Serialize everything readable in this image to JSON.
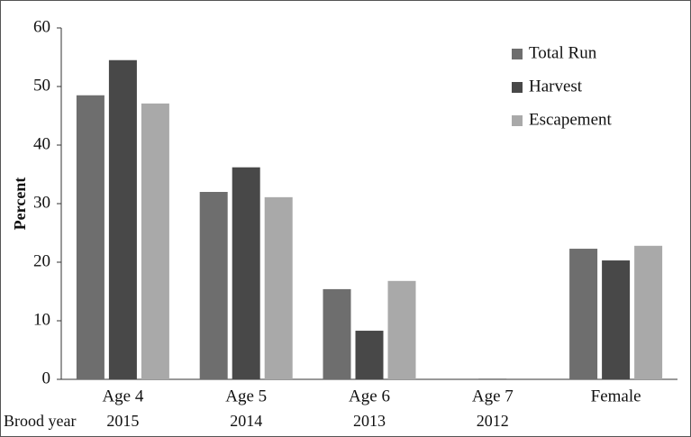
{
  "chart_data": {
    "type": "bar",
    "y_label": "Percent",
    "categories": [
      "Age 4",
      "Age 5",
      "Age 6",
      "Age 7",
      "Female"
    ],
    "second_row_label": "Brood year",
    "second_row": [
      "2015",
      "2014",
      "2013",
      "2012",
      null
    ],
    "series": [
      {
        "name": "Total Run",
        "color": "#6e6e6e",
        "values": [
          48.5,
          32.0,
          15.4,
          0,
          22.3
        ]
      },
      {
        "name": "Harvest",
        "color": "#484848",
        "values": [
          54.5,
          36.2,
          8.3,
          0.1,
          20.3
        ]
      },
      {
        "name": "Escapement",
        "color": "#a9a9a9",
        "values": [
          47.1,
          31.1,
          16.8,
          0,
          22.8
        ]
      }
    ],
    "ylim": [
      0,
      60
    ],
    "yticks": [
      0,
      10,
      20,
      30,
      40,
      50,
      60
    ],
    "grid": false,
    "legend": "upper right"
  }
}
